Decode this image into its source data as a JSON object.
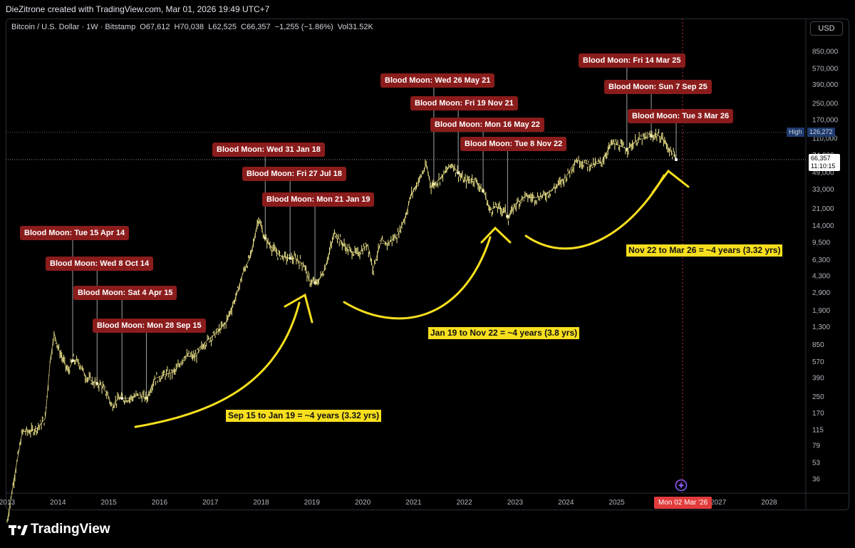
{
  "header": {
    "created_text": "DieZitrone created with TradingView.com, Mar 01, 2026 19:49 UTC+7"
  },
  "legend": {
    "symbol": "Bitcoin / U.S. Dollar · 1W · Bitstamp",
    "open": "O67,612",
    "high": "H70,038",
    "low": "L62,525",
    "close": "C66,357",
    "change": "−1,255 (−1.86%)",
    "volume": "Vol31.52K"
  },
  "currency_button": "USD",
  "price_scale": {
    "high_label": "High",
    "high_value": "126,272",
    "last_price": "66,357",
    "countdown": "11:10:15"
  },
  "cursor_date": "Mon 02 Mar '26",
  "footer": {
    "brand": "TradingView"
  },
  "colors": {
    "candle": "#f0e68c",
    "blood_moon_tag": "#8b1c1c",
    "annotation": "#f7df1e",
    "date_tag": "#e23b3b",
    "high_tag": "#1e3a6e"
  },
  "chart_data": {
    "type": "line",
    "title": "Bitcoin / U.S. Dollar · 1W · Bitstamp",
    "y_scale": "log",
    "xlim": [
      2013.0,
      2028.8
    ],
    "ylim": [
      25,
      2000000
    ],
    "x_ticks": [
      "2013",
      "2014",
      "2015",
      "2016",
      "2017",
      "2018",
      "2019",
      "2020",
      "2021",
      "2022",
      "2023",
      "2024",
      "2025",
      "2026",
      "2027",
      "2028"
    ],
    "y_ticks": [
      850000,
      570000,
      390000,
      250000,
      170000,
      110000,
      74000,
      49000,
      33000,
      21000,
      14000,
      9500,
      6300,
      4300,
      2900,
      1900,
      1300,
      850,
      570,
      390,
      250,
      170,
      115,
      79,
      53,
      36
    ],
    "y_tick_labels": [
      "850,000",
      "570,000",
      "390,000",
      "250,000",
      "170,000",
      "110,000",
      "74,000",
      "49,000",
      "33,000",
      "21,000",
      "14,000",
      "9,500",
      "6,300",
      "4,300",
      "2,900",
      "1,900",
      "1,300",
      "850",
      "570",
      "390",
      "250",
      "170",
      "115",
      "79",
      "53",
      "36"
    ],
    "series": [
      {
        "x": [
          2013.0,
          2013.15,
          2013.3,
          2013.45,
          2013.6,
          2013.75,
          2013.85,
          2013.93,
          2014.0,
          2014.1,
          2014.2,
          2014.3,
          2014.42,
          2014.55,
          2014.7,
          2014.85,
          2015.0,
          2015.05,
          2015.2,
          2015.4,
          2015.6,
          2015.75,
          2015.9,
          2016.1,
          2016.3,
          2016.5,
          2016.7,
          2016.9,
          2017.1,
          2017.3,
          2017.5,
          2017.65,
          2017.8,
          2017.95,
          2018.05,
          2018.2,
          2018.35,
          2018.55,
          2018.7,
          2018.85,
          2018.95,
          2019.1,
          2019.25,
          2019.45,
          2019.55,
          2019.7,
          2019.9,
          2020.1,
          2020.2,
          2020.35,
          2020.5,
          2020.7,
          2020.85,
          2020.95,
          2021.1,
          2021.25,
          2021.35,
          2021.55,
          2021.75,
          2021.86,
          2022.0,
          2022.2,
          2022.4,
          2022.5,
          2022.6,
          2022.8,
          2022.87,
          2023.0,
          2023.2,
          2023.4,
          2023.6,
          2023.8,
          2024.0,
          2024.2,
          2024.5,
          2024.7,
          2024.9,
          2025.0,
          2025.2,
          2025.4,
          2025.6,
          2025.78,
          2025.9,
          2026.0,
          2026.1,
          2026.17
        ],
        "values": [
          13,
          40,
          110,
          110,
          120,
          150,
          600,
          1100,
          800,
          600,
          450,
          600,
          550,
          400,
          350,
          330,
          250,
          200,
          240,
          240,
          260,
          240,
          380,
          420,
          450,
          650,
          640,
          900,
          1100,
          1400,
          2600,
          4700,
          7000,
          17000,
          11000,
          8500,
          7000,
          6500,
          6400,
          5500,
          3800,
          3600,
          5000,
          12000,
          10000,
          8000,
          7200,
          9000,
          5000,
          9300,
          9200,
          11500,
          18000,
          29000,
          40000,
          58000,
          35000,
          44000,
          60000,
          50000,
          40000,
          42000,
          30000,
          20000,
          22000,
          20000,
          16500,
          23000,
          28000,
          27000,
          29000,
          35000,
          44000,
          66000,
          58000,
          62000,
          98000,
          95000,
          85000,
          105000,
          112000,
          120000,
          110000,
          90000,
          76000,
          66357
        ]
      }
    ],
    "annotations": {
      "blood_moons": [
        "Blood Moon: Tue 15 Apr 14",
        "Blood Moon: Wed 8 Oct 14",
        "Blood Moon: Sat 4 Apr 15",
        "Blood Moon: Mon 28 Sep 15",
        "Blood Moon: Wed 31 Jan 18",
        "Blood Moon: Fri 27 Jul 18",
        "Blood Moon: Mon 21 Jan 19",
        "Blood Moon: Wed 26 May 21",
        "Blood Moon: Fri 19 Nov 21",
        "Blood Moon: Mon 16 May 22",
        "Blood Moon: Tue 8 Nov 22",
        "Blood Moon: Fri 14 Mar 25",
        "Blood Moon: Sun 7 Sep 25",
        "Blood Moon: Tue 3 Mar 26"
      ],
      "cycle_notes": [
        "Sep 15 to Jan 19 = ~4 years (3.32 yrs)",
        "Jan 19 to Nov 22 = ~4 years (3.8 yrs)",
        "Nov 22 to Mar 26 = ~4 years (3.32 yrs)"
      ]
    }
  }
}
